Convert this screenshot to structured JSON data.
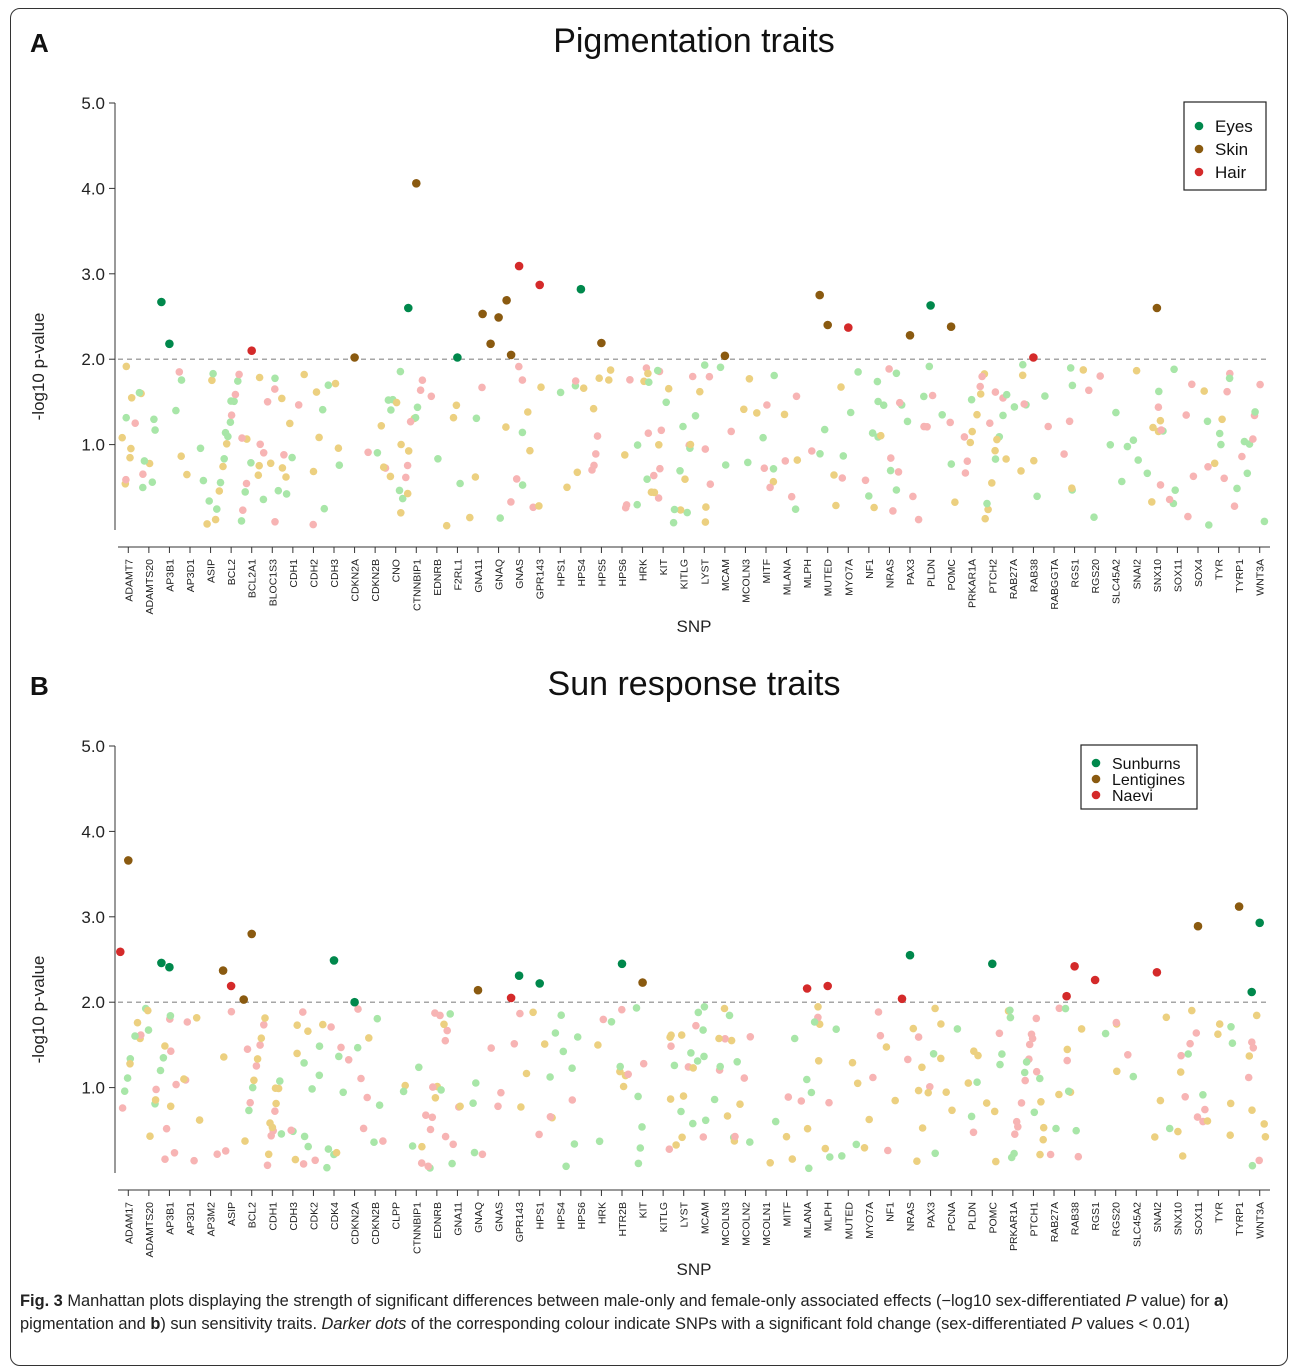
{
  "caption": {
    "fig_label": "Fig. 3",
    "text_1": " Manhattan plots displaying the strength of significant differences between male-only and female-only associated effects (−log10 sex-differentiated ",
    "p_1": "P",
    "text_2": " value) for ",
    "a": "a",
    "text_3": ") pigmentation and ",
    "b": "b",
    "text_4": ") sun sensitivity traits. ",
    "darker": "Darker dots",
    "text_5": " of the corresponding colour indicate SNPs with a significant fold change (sex-differentiated ",
    "p_2": "P",
    "text_6": " values < 0.01)"
  },
  "chart_data": [
    {
      "panel_label": "A",
      "type": "scatter",
      "title": "Pigmentation traits",
      "xlabel": "SNP",
      "ylabel": "-log10 p-value",
      "ylim": [
        0,
        5.0
      ],
      "yticks": [
        "1.0",
        "2.0",
        "3.0",
        "4.0",
        "5.0"
      ],
      "threshold": 2.0,
      "legend_position": "top-right",
      "series": [
        {
          "name": "Eyes",
          "color": "#00884c",
          "light": "#a8e6a8"
        },
        {
          "name": "Skin",
          "color": "#8a5a10",
          "light": "#ecd080"
        },
        {
          "name": "Hair",
          "color": "#d42a2a",
          "light": "#f7b4b4"
        }
      ],
      "genes": [
        "ADAMT7",
        "ADAMTS20",
        "AP3B1",
        "AP3D1",
        "ASIP",
        "BCL2",
        "BCL2A1",
        "BLOC1S3",
        "CDH1",
        "CDH2",
        "CDH3",
        "CDKN2A",
        "CDKN2B",
        "CNO",
        "CTNNBIP1",
        "EDNRB",
        "F2RL1",
        "GNA11",
        "GNAQ",
        "GNAS",
        "GPR143",
        "HPS1",
        "HPS4",
        "HPS5",
        "HPS6",
        "HRK",
        "KIT",
        "KITLG",
        "LYST",
        "MCAM",
        "MCOLN3",
        "MITF",
        "MLANA",
        "MLPH",
        "MUTED",
        "MYO7A",
        "NF1",
        "NRAS",
        "PAX3",
        "PLDN",
        "POMC",
        "PRKAR1A",
        "PTCH2",
        "RAB27A",
        "RAB38",
        "RABGGTA",
        "RGS1",
        "RGS20",
        "SLC45A2",
        "SNAI2",
        "SNX10",
        "SOX11",
        "SOX4",
        "TYR",
        "TYRP1",
        "WNT3A"
      ],
      "significant_points": [
        {
          "gene": "AP3B1",
          "series": "Eyes",
          "y": 2.18
        },
        {
          "gene": "AP3B1",
          "series": "Eyes",
          "y": 2.67
        },
        {
          "gene": "BCL2A1",
          "series": "Hair",
          "y": 2.1
        },
        {
          "gene": "CDKN2A",
          "series": "Skin",
          "y": 2.02
        },
        {
          "gene": "CTNNBIP1",
          "series": "Skin",
          "y": 4.06
        },
        {
          "gene": "CTNNBIP1",
          "series": "Eyes",
          "y": 2.6
        },
        {
          "gene": "F2RL1",
          "series": "Eyes",
          "y": 2.02
        },
        {
          "gene": "GNAQ",
          "series": "Skin",
          "y": 2.49
        },
        {
          "gene": "GNAQ",
          "series": "Skin",
          "y": 2.18
        },
        {
          "gene": "GNAQ",
          "series": "Skin",
          "y": 2.69
        },
        {
          "gene": "GNAQ",
          "series": "Skin",
          "y": 2.53
        },
        {
          "gene": "GNAS",
          "series": "Hair",
          "y": 3.09
        },
        {
          "gene": "GNAS",
          "series": "Skin",
          "y": 2.05
        },
        {
          "gene": "GPR143",
          "series": "Hair",
          "y": 2.87
        },
        {
          "gene": "HPS4",
          "series": "Eyes",
          "y": 2.82
        },
        {
          "gene": "HPS5",
          "series": "Skin",
          "y": 2.19
        },
        {
          "gene": "MCAM",
          "series": "Skin",
          "y": 2.04
        },
        {
          "gene": "MUTED",
          "series": "Skin",
          "y": 2.4
        },
        {
          "gene": "MUTED",
          "series": "Skin",
          "y": 2.75
        },
        {
          "gene": "MYO7A",
          "series": "Hair",
          "y": 2.37
        },
        {
          "gene": "PAX3",
          "series": "Skin",
          "y": 2.28
        },
        {
          "gene": "PLDN",
          "series": "Eyes",
          "y": 2.63
        },
        {
          "gene": "POMC",
          "series": "Skin",
          "y": 2.38
        },
        {
          "gene": "RAB38",
          "series": "Hair",
          "y": 2.02
        },
        {
          "gene": "SNX10",
          "series": "Skin",
          "y": 2.6
        }
      ]
    },
    {
      "panel_label": "B",
      "type": "scatter",
      "title": "Sun response traits",
      "xlabel": "SNP",
      "ylabel": "-log10 p-value",
      "ylim": [
        0,
        5.0
      ],
      "yticks": [
        "1.0",
        "2.0",
        "3.0",
        "4.0",
        "5.0"
      ],
      "threshold": 2.0,
      "legend_position": "top-right",
      "series": [
        {
          "name": "Sunburns",
          "color": "#00884c",
          "light": "#a8e6a8"
        },
        {
          "name": "Lentigines",
          "color": "#8a5a10",
          "light": "#ecd080"
        },
        {
          "name": "Naevi",
          "color": "#d42a2a",
          "light": "#f7b4b4"
        }
      ],
      "genes": [
        "ADAM17",
        "ADAMTS20",
        "AP3B1",
        "AP3D1",
        "AP3M2",
        "ASIP",
        "BCL2",
        "CDH1",
        "CDH3",
        "CDK2",
        "CDK4",
        "CDKN2A",
        "CDKN2B",
        "CLPP",
        "CTNNBIP1",
        "EDNRB",
        "GNA11",
        "GNAQ",
        "GNAS",
        "GPR143",
        "HPS1",
        "HPS4",
        "HPS6",
        "HRK",
        "HTR2B",
        "KIT",
        "KITLG",
        "LYST",
        "MCAM",
        "MCOLN3",
        "MCOLN2",
        "MCOLN1",
        "MITF",
        "MLANA",
        "MLPH",
        "MUTED",
        "MYO7A",
        "NF1",
        "NRAS",
        "PAX3",
        "PCNA",
        "PLDN",
        "POMC",
        "PRKAR1A",
        "PTCH1",
        "RAB27A",
        "RAB38",
        "RGS1",
        "RGS20",
        "SLC45A2",
        "SNAI2",
        "SNX10",
        "SOX11",
        "TYR",
        "TYRP1",
        "WNT3A"
      ],
      "significant_points": [
        {
          "gene": "ADAM17",
          "series": "Lentigines",
          "y": 3.66
        },
        {
          "gene": "ADAM17",
          "series": "Naevi",
          "y": 2.59
        },
        {
          "gene": "AP3B1",
          "series": "Sunburns",
          "y": 2.41
        },
        {
          "gene": "AP3B1",
          "series": "Sunburns",
          "y": 2.46
        },
        {
          "gene": "ASIP",
          "series": "Naevi",
          "y": 2.19
        },
        {
          "gene": "ASIP",
          "series": "Lentigines",
          "y": 2.37
        },
        {
          "gene": "BCL2",
          "series": "Lentigines",
          "y": 2.8
        },
        {
          "gene": "BCL2",
          "series": "Lentigines",
          "y": 2.03
        },
        {
          "gene": "CDK4",
          "series": "Sunburns",
          "y": 2.49
        },
        {
          "gene": "CDKN2A",
          "series": "Sunburns",
          "y": 2.0
        },
        {
          "gene": "GNAQ",
          "series": "Lentigines",
          "y": 2.14
        },
        {
          "gene": "GPR143",
          "series": "Sunburns",
          "y": 2.31
        },
        {
          "gene": "GPR143",
          "series": "Naevi",
          "y": 2.05
        },
        {
          "gene": "HPS1",
          "series": "Sunburns",
          "y": 2.22
        },
        {
          "gene": "HTR2B",
          "series": "Sunburns",
          "y": 2.45
        },
        {
          "gene": "KIT",
          "series": "Lentigines",
          "y": 2.23
        },
        {
          "gene": "MLANA",
          "series": "Naevi",
          "y": 2.16
        },
        {
          "gene": "MLPH",
          "series": "Naevi",
          "y": 2.19
        },
        {
          "gene": "NRAS",
          "series": "Sunburns",
          "y": 2.55
        },
        {
          "gene": "NRAS",
          "series": "Naevi",
          "y": 2.04
        },
        {
          "gene": "POMC",
          "series": "Sunburns",
          "y": 2.45
        },
        {
          "gene": "RAB38",
          "series": "Naevi",
          "y": 2.42
        },
        {
          "gene": "RAB38",
          "series": "Naevi",
          "y": 2.07
        },
        {
          "gene": "RGS1",
          "series": "Naevi",
          "y": 2.26
        },
        {
          "gene": "SNAI2",
          "series": "Naevi",
          "y": 2.35
        },
        {
          "gene": "SOX11",
          "series": "Lentigines",
          "y": 2.89
        },
        {
          "gene": "TYRP1",
          "series": "Lentigines",
          "y": 3.12
        },
        {
          "gene": "WNT3A",
          "series": "Sunburns",
          "y": 2.93
        },
        {
          "gene": "WNT3A",
          "series": "Sunburns",
          "y": 2.12
        }
      ]
    }
  ]
}
